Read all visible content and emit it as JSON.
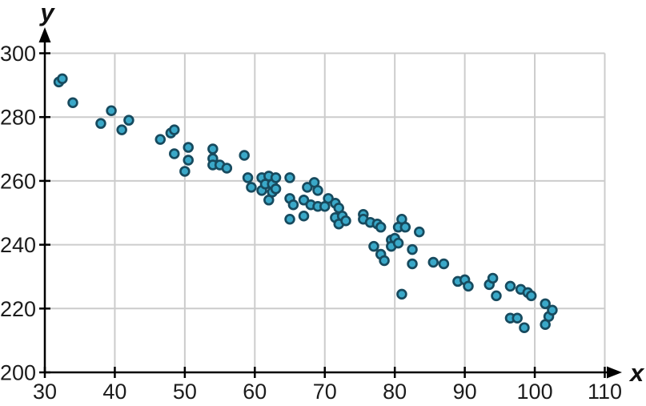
{
  "chart_data": {
    "type": "scatter",
    "title": "",
    "xlabel": "x",
    "ylabel": "y",
    "x_axis": {
      "min": 30,
      "max": 110,
      "tick_step": 10,
      "ticks": [
        30,
        40,
        50,
        60,
        70,
        80,
        90,
        100,
        110
      ]
    },
    "y_axis": {
      "min": 200,
      "max": 300,
      "tick_step": 20,
      "ticks": [
        200,
        220,
        240,
        260,
        280,
        300
      ]
    },
    "grid": true,
    "legend": false,
    "trend": "negative linear association",
    "points": [
      [
        32,
        291
      ],
      [
        32.5,
        292
      ],
      [
        34,
        284.5
      ],
      [
        38,
        278
      ],
      [
        39.5,
        282
      ],
      [
        41,
        276
      ],
      [
        42,
        279
      ],
      [
        46.5,
        273
      ],
      [
        48,
        275
      ],
      [
        48.5,
        276
      ],
      [
        48.5,
        268.5
      ],
      [
        50,
        263
      ],
      [
        50.5,
        270.5
      ],
      [
        50.5,
        266.5
      ],
      [
        54,
        270
      ],
      [
        54,
        267
      ],
      [
        54,
        265
      ],
      [
        55,
        265
      ],
      [
        56,
        264
      ],
      [
        58.5,
        268
      ],
      [
        59,
        261
      ],
      [
        59.5,
        258
      ],
      [
        61,
        261
      ],
      [
        61,
        257
      ],
      [
        61.5,
        259
      ],
      [
        62,
        261.5
      ],
      [
        62,
        254
      ],
      [
        62.5,
        259
      ],
      [
        62.5,
        256.5
      ],
      [
        63,
        261
      ],
      [
        63,
        257.5
      ],
      [
        65,
        261
      ],
      [
        65,
        254.5
      ],
      [
        65.5,
        252.5
      ],
      [
        65,
        248
      ],
      [
        67,
        249
      ],
      [
        67,
        254
      ],
      [
        67.5,
        258
      ],
      [
        68,
        252.5
      ],
      [
        68.5,
        259.5
      ],
      [
        69,
        252
      ],
      [
        69,
        257
      ],
      [
        70,
        252
      ],
      [
        70.5,
        254.5
      ],
      [
        71.5,
        248.5
      ],
      [
        71.5,
        253
      ],
      [
        72,
        251.5
      ],
      [
        72,
        246.5
      ],
      [
        72.5,
        249
      ],
      [
        73,
        247.5
      ],
      [
        75.5,
        249.5
      ],
      [
        75.5,
        248
      ],
      [
        76.5,
        247
      ],
      [
        77,
        239.5
      ],
      [
        77.5,
        246.5
      ],
      [
        78,
        245.5
      ],
      [
        78,
        237
      ],
      [
        78.5,
        235
      ],
      [
        79.5,
        241.5
      ],
      [
        79.5,
        239.5
      ],
      [
        80,
        242
      ],
      [
        80.5,
        240.5
      ],
      [
        80.5,
        245.5
      ],
      [
        81,
        248
      ],
      [
        81,
        224.5
      ],
      [
        81.5,
        245.5
      ],
      [
        82.5,
        238.5
      ],
      [
        82.5,
        234
      ],
      [
        83.5,
        244
      ],
      [
        85.5,
        234.5
      ],
      [
        87,
        234
      ],
      [
        89,
        228.5
      ],
      [
        90,
        229
      ],
      [
        90.5,
        227
      ],
      [
        93.5,
        227.5
      ],
      [
        94,
        229.5
      ],
      [
        94.5,
        224
      ],
      [
        96.5,
        227
      ],
      [
        96.5,
        217
      ],
      [
        97.5,
        217
      ],
      [
        98,
        226
      ],
      [
        98.5,
        214
      ],
      [
        99,
        225
      ],
      [
        99.5,
        224
      ],
      [
        101.5,
        221.5
      ],
      [
        101.5,
        215
      ],
      [
        102,
        217.5
      ],
      [
        102.5,
        219.5
      ]
    ]
  },
  "style": {
    "point_fill": "#3AA8C8",
    "point_stroke": "#174A5E",
    "grid_color": "#cccccc",
    "axis_color": "#000000",
    "label_color": "#1c1c1c",
    "background": "#ffffff"
  }
}
